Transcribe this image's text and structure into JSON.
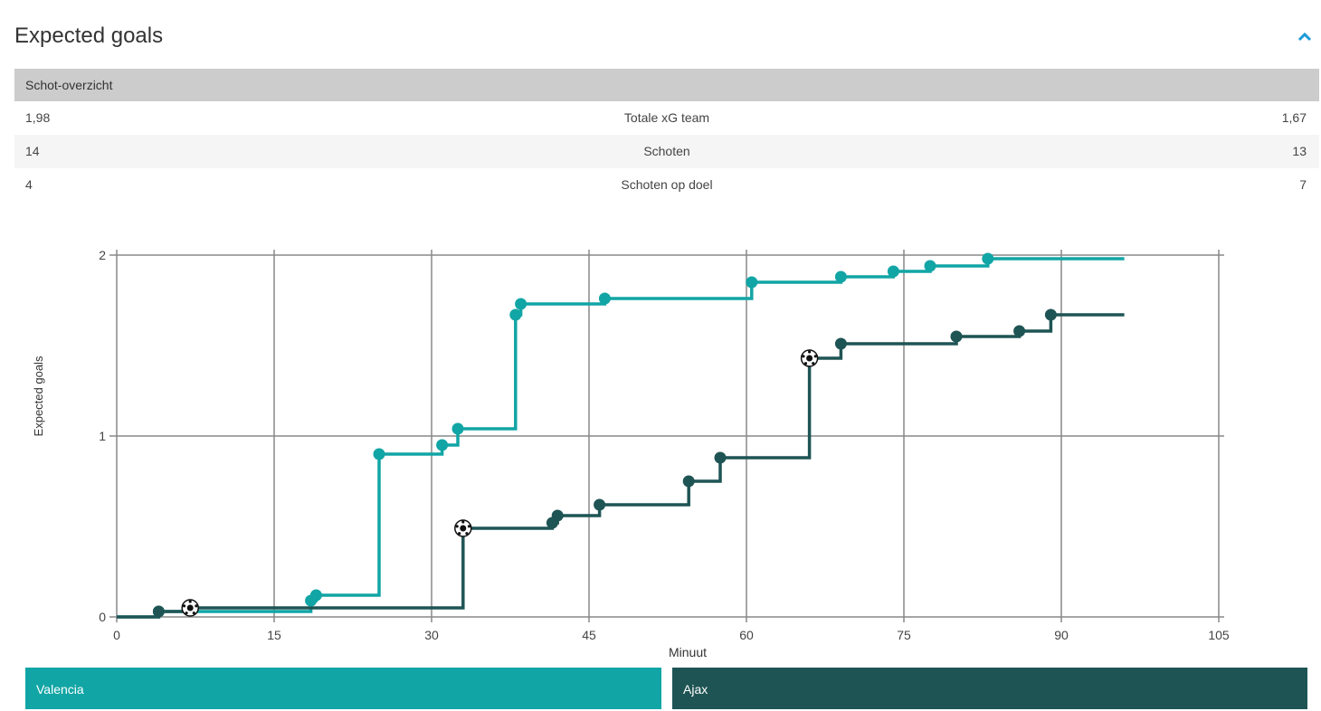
{
  "header": {
    "title": "Expected goals",
    "collapse_icon": "chevron-up-icon"
  },
  "summary": {
    "heading": "Schot-overzicht",
    "rows": [
      {
        "label": "Totale xG team",
        "home": "1,98",
        "away": "1,67"
      },
      {
        "label": "Schoten",
        "home": "14",
        "away": "13"
      },
      {
        "label": "Schoten op doel",
        "home": "4",
        "away": "7"
      }
    ]
  },
  "colors": {
    "valencia": "#12a5a5",
    "ajax": "#1f5454",
    "grid": "#888888"
  },
  "legend": {
    "home": "Valencia",
    "away": "Ajax"
  },
  "chart_data": {
    "type": "line",
    "step": true,
    "xlabel": "Minuut",
    "ylabel": "Expected goals",
    "xlim": [
      0,
      105
    ],
    "ylim": [
      0,
      2
    ],
    "x_ticks": [
      0,
      15,
      30,
      45,
      60,
      75,
      90,
      105
    ],
    "y_ticks": [
      0,
      1,
      2
    ],
    "grid": true,
    "end_minute": 96,
    "series": [
      {
        "name": "Valencia",
        "color": "#12a5a5",
        "shots": [
          {
            "minute": 4,
            "xg": 0.03,
            "goal": false
          },
          {
            "minute": 18.5,
            "xg": 0.09,
            "goal": false
          },
          {
            "minute": 19,
            "xg": 0.12,
            "goal": false
          },
          {
            "minute": 25,
            "xg": 0.9,
            "goal": false
          },
          {
            "minute": 31,
            "xg": 0.95,
            "goal": false
          },
          {
            "minute": 32.5,
            "xg": 1.04,
            "goal": false
          },
          {
            "minute": 38,
            "xg": 1.67,
            "goal": false
          },
          {
            "minute": 38.5,
            "xg": 1.73,
            "goal": false
          },
          {
            "minute": 46.5,
            "xg": 1.76,
            "goal": false
          },
          {
            "minute": 60.5,
            "xg": 1.85,
            "goal": false
          },
          {
            "minute": 69,
            "xg": 1.88,
            "goal": false
          },
          {
            "minute": 74,
            "xg": 1.91,
            "goal": false
          },
          {
            "minute": 77.5,
            "xg": 1.94,
            "goal": false
          },
          {
            "minute": 83,
            "xg": 1.98,
            "goal": false
          }
        ]
      },
      {
        "name": "Ajax",
        "color": "#1f5454",
        "shots": [
          {
            "minute": 4,
            "xg": 0.03,
            "goal": false
          },
          {
            "minute": 7,
            "xg": 0.05,
            "goal": true
          },
          {
            "minute": 33,
            "xg": 0.49,
            "goal": true
          },
          {
            "minute": 41.5,
            "xg": 0.52,
            "goal": false
          },
          {
            "minute": 42,
            "xg": 0.56,
            "goal": false
          },
          {
            "minute": 46,
            "xg": 0.62,
            "goal": false
          },
          {
            "minute": 54.5,
            "xg": 0.75,
            "goal": false
          },
          {
            "minute": 57.5,
            "xg": 0.88,
            "goal": false
          },
          {
            "minute": 66,
            "xg": 1.43,
            "goal": true
          },
          {
            "minute": 69,
            "xg": 1.51,
            "goal": false
          },
          {
            "minute": 80,
            "xg": 1.55,
            "goal": false
          },
          {
            "minute": 86,
            "xg": 1.58,
            "goal": false
          },
          {
            "minute": 89,
            "xg": 1.67,
            "goal": false
          }
        ]
      }
    ]
  }
}
